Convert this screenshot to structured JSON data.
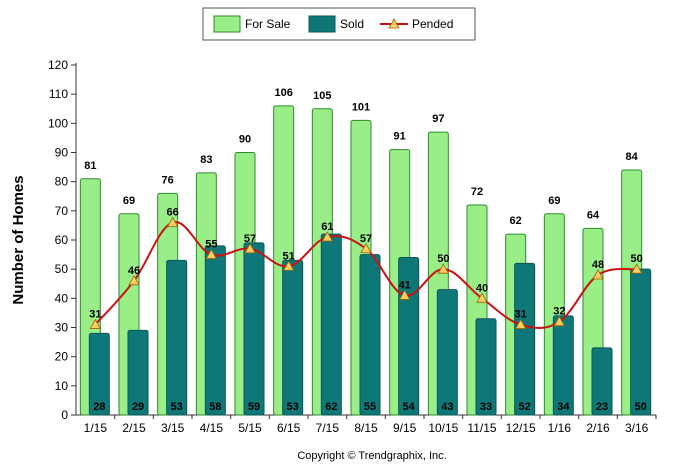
{
  "chart_data": {
    "type": "bar",
    "categories": [
      "1/15",
      "2/15",
      "3/15",
      "4/15",
      "5/15",
      "6/15",
      "7/15",
      "8/15",
      "9/15",
      "10/15",
      "11/15",
      "12/15",
      "1/16",
      "2/16",
      "3/16"
    ],
    "series": [
      {
        "name": "For Sale",
        "type": "bar",
        "color": "#99ee88",
        "stroke": "#2f8a2f",
        "values": [
          81,
          69,
          76,
          83,
          90,
          106,
          105,
          101,
          91,
          97,
          72,
          62,
          69,
          64,
          84
        ]
      },
      {
        "name": "Sold",
        "type": "bar",
        "color": "#0e7878",
        "stroke": "#0a5656",
        "values": [
          28,
          29,
          53,
          58,
          59,
          53,
          62,
          55,
          54,
          43,
          33,
          52,
          34,
          23,
          50
        ]
      },
      {
        "name": "Pended",
        "type": "line",
        "color": "#cc1111",
        "marker": "triangle",
        "marker_fill": "#ffcc66",
        "values": [
          31,
          46,
          66,
          55,
          57,
          51,
          61,
          57,
          41,
          50,
          40,
          31,
          32,
          48,
          50
        ]
      }
    ],
    "title": "",
    "xlabel": "",
    "ylabel": "Number of Homes",
    "ylim": [
      0,
      120
    ],
    "yticks": [
      0,
      10,
      20,
      30,
      40,
      50,
      60,
      70,
      80,
      90,
      100,
      110,
      120
    ],
    "grid": false,
    "legend_position": "top-center"
  },
  "legend": {
    "for_sale": "For Sale",
    "sold": "Sold",
    "pended": "Pended"
  },
  "copyright": "Copyright © Trendgraphix, Inc."
}
